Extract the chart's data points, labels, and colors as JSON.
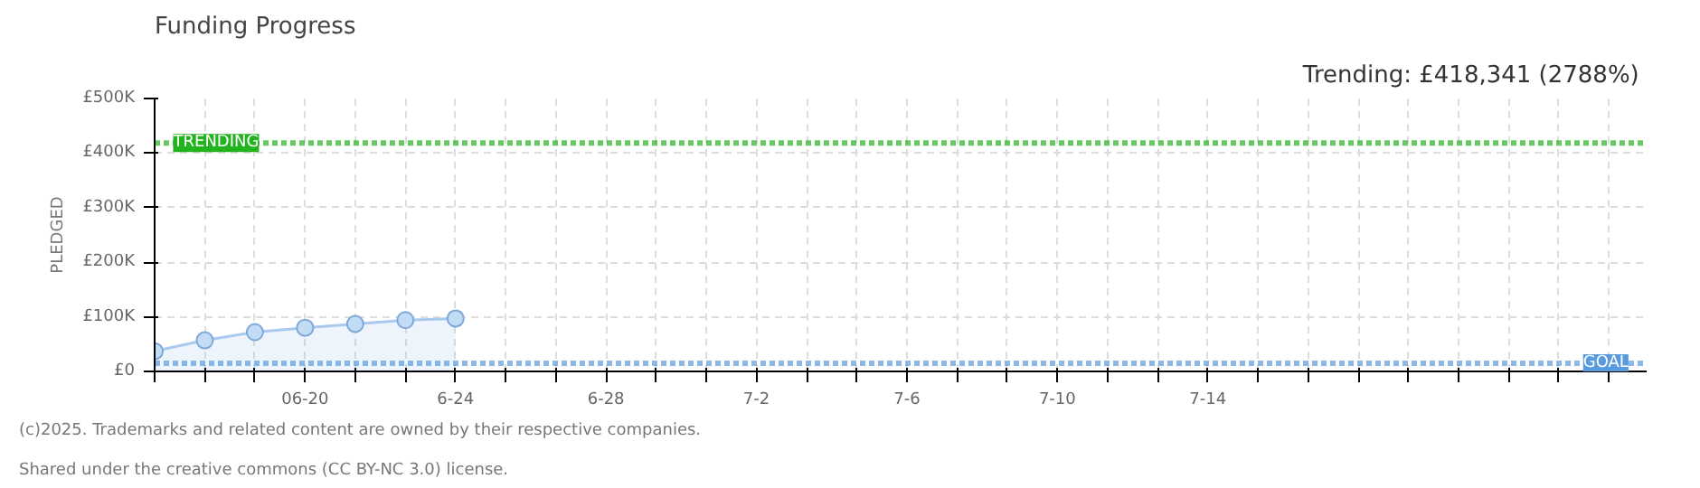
{
  "chart_data": {
    "type": "area",
    "title": "Funding Progress",
    "subtitle": "Trending:  £418,341 (2788%)",
    "ylabel": "PLEDGED",
    "x": [
      "2025-06-16T00:00",
      "2025-06-17T08:00",
      "2025-06-18T16:00",
      "2025-06-20T00:00",
      "2025-06-21T08:00",
      "2025-06-22T16:00",
      "2025-06-24T00:00"
    ],
    "series": [
      {
        "color": "#a9c9ef",
        "values": [
          37000,
          57000,
          72000,
          80000,
          87000,
          94000,
          97000
        ]
      }
    ],
    "marker": "circle",
    "grid": true,
    "xlim": [
      "2025-06-16T00:00",
      "2025-07-25T16:00"
    ],
    "xticks": [
      {
        "value": "2025-06-16T00:00",
        "label": null
      },
      {
        "value": "2025-06-17T08:00",
        "label": null
      },
      {
        "value": "2025-06-18T16:00",
        "label": null
      },
      {
        "value": "2025-06-20T00:00",
        "label": "06-20"
      },
      {
        "value": "2025-06-21T08:00",
        "label": null
      },
      {
        "value": "2025-06-22T16:00",
        "label": null
      },
      {
        "value": "2025-06-24T00:00",
        "label": "6-24"
      },
      {
        "value": "2025-06-25T08:00",
        "label": null
      },
      {
        "value": "2025-06-26T16:00",
        "label": null
      },
      {
        "value": "2025-06-28T00:00",
        "label": "6-28"
      },
      {
        "value": "2025-06-29T08:00",
        "label": null
      },
      {
        "value": "2025-06-30T16:00",
        "label": null
      },
      {
        "value": "2025-07-02T00:00",
        "label": "7-2"
      },
      {
        "value": "2025-07-03T08:00",
        "label": null
      },
      {
        "value": "2025-07-04T16:00",
        "label": null
      },
      {
        "value": "2025-07-06T00:00",
        "label": "7-6"
      },
      {
        "value": "2025-07-07T08:00",
        "label": null
      },
      {
        "value": "2025-07-08T16:00",
        "label": null
      },
      {
        "value": "2025-07-10T00:00",
        "label": "7-10"
      },
      {
        "value": "2025-07-11T08:00",
        "label": null
      },
      {
        "value": "2025-07-12T16:00",
        "label": null
      },
      {
        "value": "2025-07-14T00:00",
        "label": "7-14"
      },
      {
        "value": "2025-07-15T08:00",
        "label": null
      },
      {
        "value": "2025-07-16T16:00",
        "label": null
      },
      {
        "value": "2025-07-18T00:00",
        "label": null
      },
      {
        "value": "2025-07-19T08:00",
        "label": null
      },
      {
        "value": "2025-07-20T16:00",
        "label": null
      },
      {
        "value": "2025-07-22T00:00",
        "label": null
      },
      {
        "value": "2025-07-23T08:00",
        "label": null
      },
      {
        "value": "2025-07-24T16:00",
        "label": null
      }
    ],
    "ylim": [
      0,
      500000
    ],
    "yticks": [
      {
        "value": 0,
        "label": "£0"
      },
      {
        "value": 100000,
        "label": "£100K"
      },
      {
        "value": 200000,
        "label": "£200K"
      },
      {
        "value": 300000,
        "label": "£300K"
      },
      {
        "value": 400000,
        "label": "£400K"
      },
      {
        "value": 500000,
        "label": "£500K"
      }
    ],
    "ref_lines": [
      {
        "axis": "y",
        "value": 418341,
        "label": "TRENDING",
        "color": "#22b31e",
        "line_style": "dotted"
      },
      {
        "axis": "y",
        "value": 15000,
        "label": "GOAL",
        "color": "#5a9be0",
        "line_style": "dotted"
      }
    ],
    "annotations": [
      "(c)2025. Trademarks and related content are owned by their respective companies.",
      "Shared under the creative commons (CC BY-NC 3.0) license."
    ]
  }
}
